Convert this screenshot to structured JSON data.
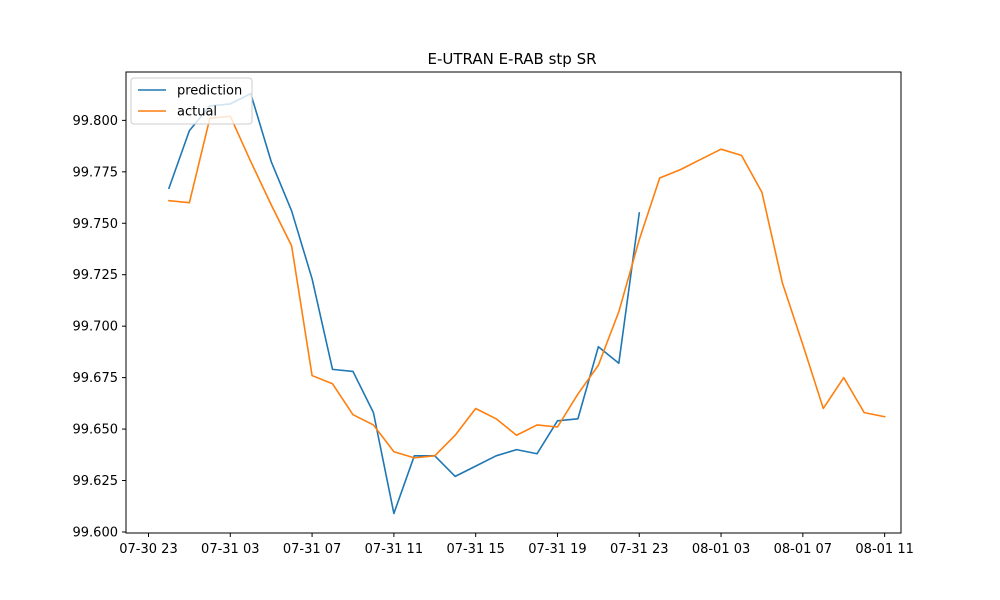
{
  "chart_data": {
    "type": "line",
    "title": "E-UTRAN E-RAB stp SR",
    "xlabel": "",
    "ylabel": "",
    "x_unit": "hours",
    "x_ticks": [
      {
        "x": 0,
        "label": "07-30 23"
      },
      {
        "x": 4,
        "label": "07-31 03"
      },
      {
        "x": 8,
        "label": "07-31 07"
      },
      {
        "x": 12,
        "label": "07-31 11"
      },
      {
        "x": 16,
        "label": "07-31 15"
      },
      {
        "x": 20,
        "label": "07-31 19"
      },
      {
        "x": 24,
        "label": "07-31 23"
      },
      {
        "x": 28,
        "label": "08-01 03"
      },
      {
        "x": 32,
        "label": "08-01 07"
      },
      {
        "x": 36,
        "label": "08-01 11"
      }
    ],
    "y_ticks": [
      {
        "y": 99.6,
        "label": "99.600"
      },
      {
        "y": 99.625,
        "label": "99.625"
      },
      {
        "y": 99.65,
        "label": "99.650"
      },
      {
        "y": 99.675,
        "label": "99.675"
      },
      {
        "y": 99.7,
        "label": "99.700"
      },
      {
        "y": 99.725,
        "label": "99.725"
      },
      {
        "y": 99.75,
        "label": "99.750"
      },
      {
        "y": 99.775,
        "label": "99.775"
      },
      {
        "y": 99.8,
        "label": "99.800"
      }
    ],
    "xlim": [
      -1.1,
      36.8
    ],
    "ylim": [
      99.5995,
      99.8235
    ],
    "grid": false,
    "legend_position": "top-left",
    "series": [
      {
        "name": "prediction",
        "color": "#1f77b4",
        "x": [
          1,
          2,
          3,
          4,
          5,
          6,
          7,
          8,
          9,
          10,
          11,
          12,
          13,
          14,
          15,
          16,
          17,
          18,
          19,
          20,
          21,
          22,
          23,
          24
        ],
        "y": [
          99.767,
          99.795,
          99.807,
          99.808,
          99.813,
          99.78,
          99.756,
          99.723,
          99.679,
          99.678,
          99.658,
          99.609,
          99.637,
          99.637,
          99.627,
          99.632,
          99.637,
          99.64,
          99.638,
          99.654,
          99.655,
          99.69,
          99.682,
          99.755
        ]
      },
      {
        "name": "actual",
        "color": "#ff7f0e",
        "x": [
          1,
          2,
          3,
          4,
          5,
          6,
          7,
          8,
          9,
          10,
          11,
          12,
          13,
          14,
          15,
          16,
          17,
          18,
          19,
          20,
          21,
          22,
          23,
          24,
          25,
          26,
          27,
          28,
          29,
          30,
          31,
          32,
          33,
          34,
          35,
          36
        ],
        "y": [
          99.761,
          99.76,
          99.801,
          99.802,
          99.78,
          99.759,
          99.739,
          99.676,
          99.672,
          99.657,
          99.652,
          99.639,
          99.636,
          99.637,
          99.647,
          99.66,
          99.655,
          99.647,
          99.652,
          99.651,
          99.667,
          99.681,
          99.707,
          99.742,
          99.772,
          99.776,
          99.781,
          99.786,
          99.783,
          99.765,
          99.721,
          99.691,
          99.66,
          99.675,
          99.658,
          99.656
        ]
      }
    ]
  }
}
